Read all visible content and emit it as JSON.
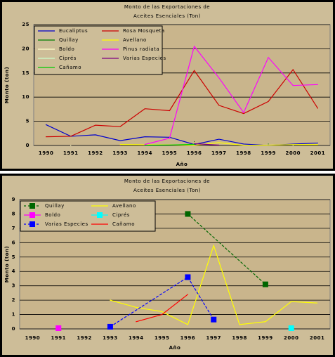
{
  "chart_data": [
    {
      "type": "line",
      "title": [
        "Monto de las Exportaciones de",
        "Aceites Esenciales (Ton)"
      ],
      "x_label": "Año",
      "y_label": "Monto (ton)",
      "categories": [
        "1990",
        "1991",
        "1992",
        "1993",
        "1994",
        "1995",
        "1996",
        "1997",
        "1998",
        "1999",
        "2000",
        "2001"
      ],
      "ylim": [
        0,
        25
      ],
      "yticks": [
        0,
        5,
        10,
        15,
        20,
        25
      ],
      "grid": true,
      "legend": "upper left",
      "series": [
        {
          "name": "Eucaliptus",
          "color": "#0000cc",
          "values": [
            4.3,
            1.9,
            2.2,
            1.0,
            1.8,
            1.7,
            0.2,
            1.3,
            0.3,
            0,
            0.3,
            0.5
          ]
        },
        {
          "name": "Rosa Mosqueta",
          "color": "#cc0000",
          "values": [
            1.8,
            1.9,
            4.2,
            3.9,
            7.6,
            7.2,
            15.5,
            8.3,
            6.6,
            9.1,
            15.7,
            7.7
          ]
        },
        {
          "name": "Quillay",
          "color": "#008000",
          "values": [
            null,
            null,
            null,
            null,
            null,
            null,
            0.8,
            null,
            null,
            0.31,
            null,
            null
          ]
        },
        {
          "name": "Avellano",
          "color": "#ffff00",
          "values": [
            null,
            null,
            null,
            0.2,
            0.15,
            0.12,
            0.03,
            0.58,
            0.03,
            0.05,
            0.19,
            0.18
          ]
        },
        {
          "name": "Boldo",
          "color": "#ffffcc",
          "values": [
            null,
            0,
            null,
            null,
            null,
            null,
            null,
            null,
            null,
            null,
            null,
            null
          ]
        },
        {
          "name": "Pinus radiata",
          "color": "#ff00ff",
          "values": [
            null,
            null,
            null,
            null,
            0.2,
            1.5,
            20.5,
            14.0,
            6.8,
            18.2,
            12.4,
            12.6
          ]
        },
        {
          "name": "Ciprés",
          "color": "#ccffcc",
          "values": [
            null,
            null,
            null,
            null,
            null,
            null,
            null,
            null,
            null,
            null,
            0,
            null
          ]
        },
        {
          "name": "Varias Especies",
          "color": "#800080",
          "values": [
            null,
            null,
            null,
            0.02,
            null,
            null,
            0.36,
            0.07,
            null,
            null,
            null,
            null
          ]
        },
        {
          "name": "Cañamo",
          "color": "#00cc00",
          "values": [
            null,
            null,
            null,
            null,
            0.05,
            0.1,
            0.24,
            null,
            null,
            null,
            null,
            null
          ]
        }
      ]
    },
    {
      "type": "line",
      "title": [
        "Monto de las Exportaciones de",
        "Aceites Esenciales (Ton)"
      ],
      "x_label": "Año",
      "y_label": "Monto (ton)",
      "xlim": [
        1989.5,
        2001.5
      ],
      "xticks": [
        1990,
        1991,
        1992,
        1993,
        1994,
        1995,
        1996,
        1997,
        1998,
        1999,
        2000,
        2001
      ],
      "ylim": [
        0,
        9
      ],
      "yticks": [
        0,
        1,
        2,
        3,
        4,
        5,
        6,
        7,
        8,
        9
      ],
      "grid": true,
      "legend": "upper left",
      "series": [
        {
          "name": "Quillay",
          "color": "#006600",
          "marker": "square",
          "dashed": true,
          "x": [
            1996,
            1999
          ],
          "values": [
            8.0,
            3.1
          ]
        },
        {
          "name": "Avellano",
          "color": "#ffff00",
          "x": [
            1993,
            1994,
            1995,
            1996,
            1997,
            1998,
            1999,
            2000,
            2001
          ],
          "values": [
            2.0,
            1.5,
            1.2,
            0.3,
            5.8,
            0.3,
            0.5,
            1.9,
            1.8
          ]
        },
        {
          "name": "Boldo",
          "color": "#ff00ff",
          "marker": "square",
          "x": [
            1991
          ],
          "values": [
            0.05
          ]
        },
        {
          "name": "Ciprés",
          "color": "#00ffff",
          "marker": "square",
          "x": [
            2000
          ],
          "values": [
            0.05
          ]
        },
        {
          "name": "Varias Especies",
          "color": "#0000ff",
          "marker": "square",
          "dashed": true,
          "x": [
            1993,
            1996,
            1997
          ],
          "values": [
            0.15,
            3.6,
            0.65
          ]
        },
        {
          "name": "Cañamo",
          "color": "#ff0000",
          "x": [
            1994,
            1995,
            1996
          ],
          "values": [
            0.5,
            1.0,
            2.4
          ]
        }
      ]
    }
  ]
}
